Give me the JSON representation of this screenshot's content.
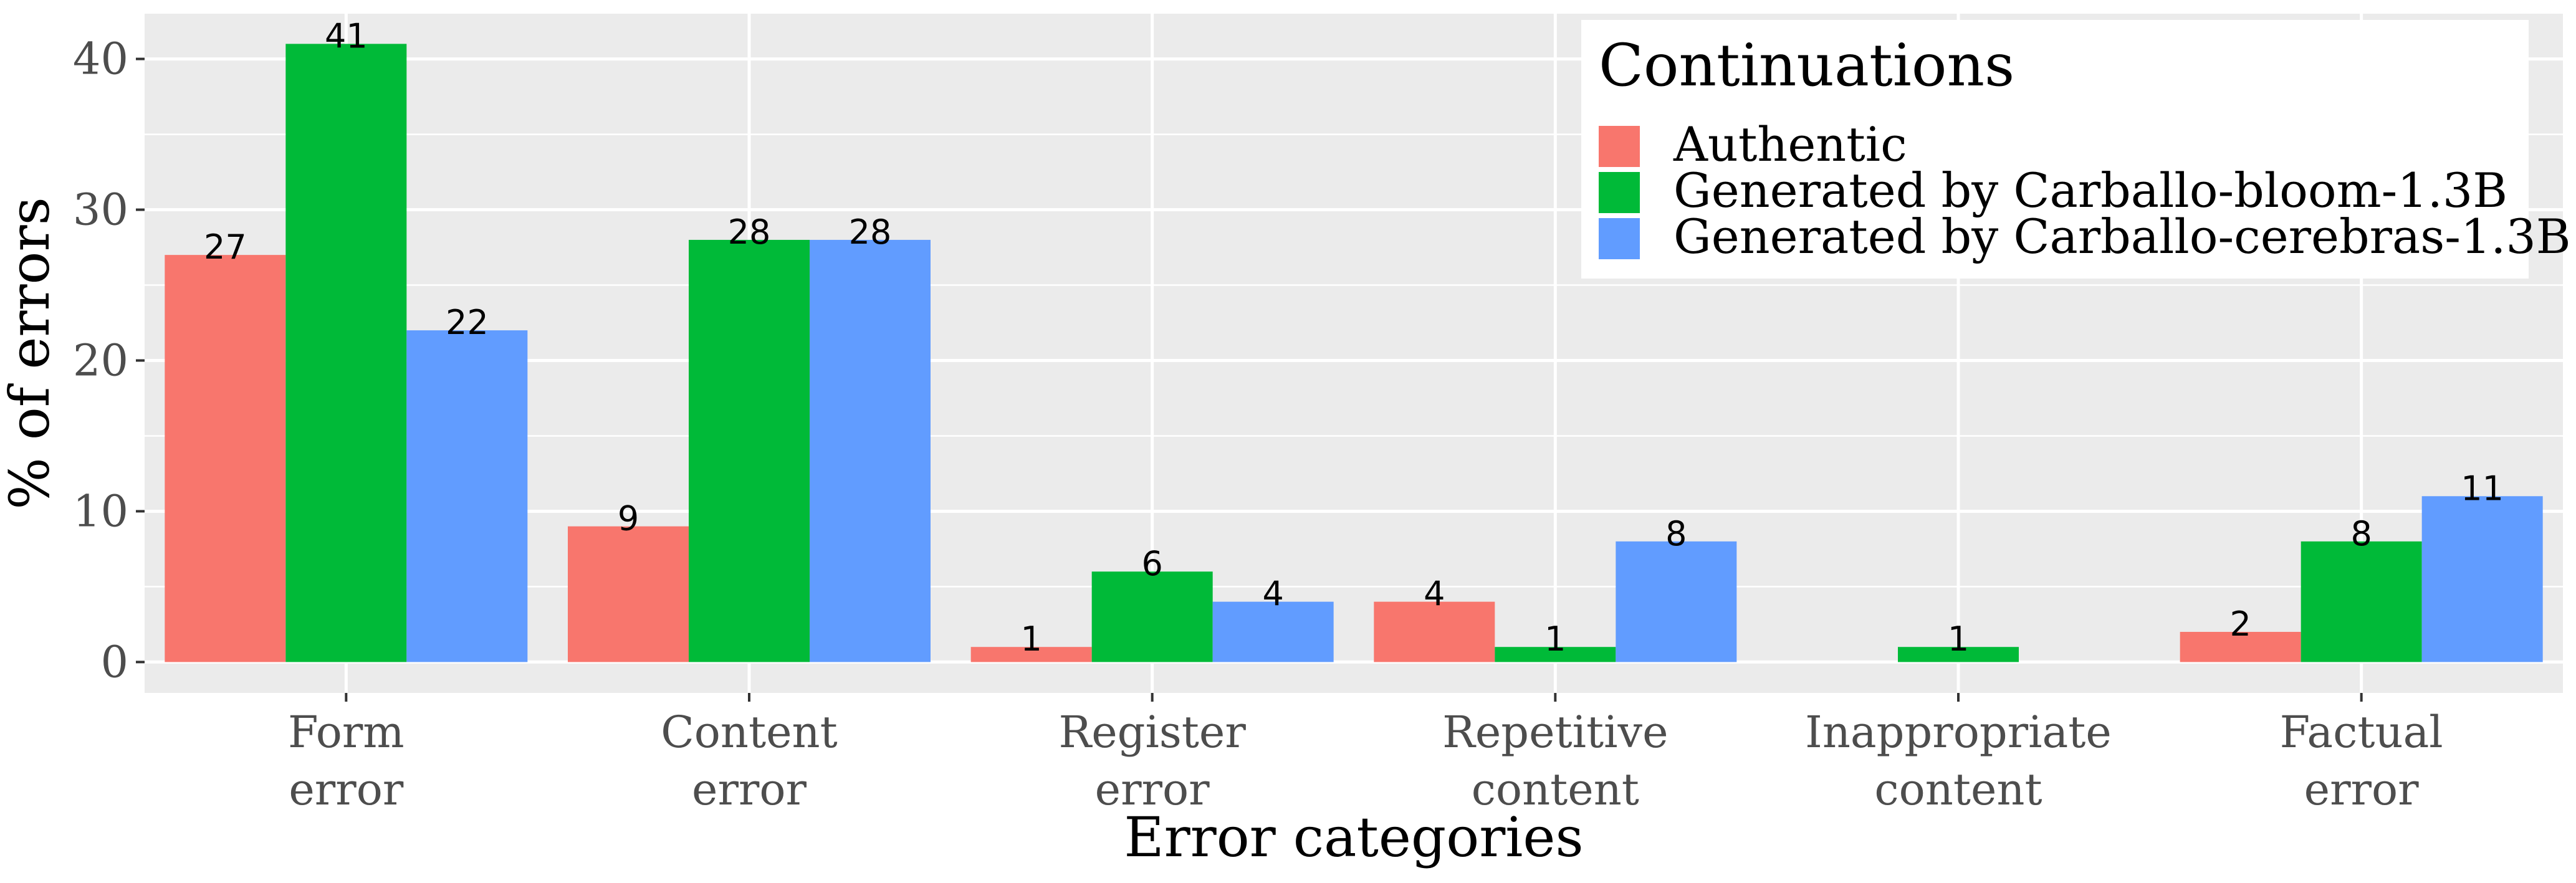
{
  "chart_data": {
    "type": "bar",
    "categories": [
      [
        "Form",
        "error"
      ],
      [
        "Content",
        "error"
      ],
      [
        "Register",
        "error"
      ],
      [
        "Repetitive",
        "content"
      ],
      [
        "Inappropriate",
        "content"
      ],
      [
        "Factual",
        "error"
      ]
    ],
    "series": [
      {
        "name": "Authentic",
        "color": "#F8766D",
        "values": [
          27,
          9,
          1,
          4,
          null,
          2
        ]
      },
      {
        "name": "Generated by Carballo-bloom-1.3B",
        "color": "#00BA38",
        "values": [
          41,
          28,
          6,
          1,
          1,
          8
        ]
      },
      {
        "name": "Generated by Carballo-cerebras-1.3B",
        "color": "#619CFF",
        "values": [
          22,
          28,
          4,
          8,
          null,
          11
        ]
      }
    ],
    "xlabel": "Error categories",
    "ylabel": "% of errors",
    "ylim": [
      -2.05,
      43
    ],
    "yticks": [
      0,
      10,
      20,
      30,
      40
    ],
    "legend": {
      "title": "Continuations",
      "position": "top-right"
    },
    "grid": true,
    "panel_background": "#EBEBEB",
    "gridline_color": "#FFFFFF"
  }
}
